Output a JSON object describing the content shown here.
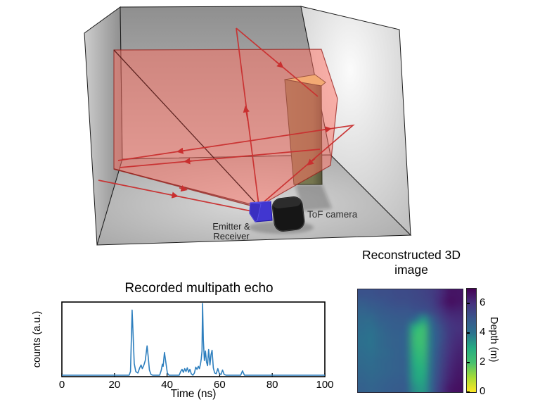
{
  "scene": {
    "emitter_label_line1": "Emitter &",
    "emitter_label_line2": "Receiver",
    "tof_label": "ToF camera",
    "colors": {
      "beam": "#ff6e5f",
      "beam_edge": "#a02620",
      "ray": "#c92f2f",
      "emitter_blue": "#4136d0",
      "camera_black": "#161616",
      "pillar_front": "#75754e",
      "pillar_top": "#e6e687",
      "wall_gray": "#b5b5b5"
    }
  },
  "chart_data": [
    {
      "type": "line",
      "title": "Recorded multipath echo",
      "xlabel": "Time (ns)",
      "ylabel": "counts (a.u.)",
      "xlim": [
        0,
        100
      ],
      "ylim": [
        0,
        1.08
      ],
      "x_ticks": [
        0,
        20,
        40,
        60,
        80,
        100
      ],
      "line_color": "#2e7fbe",
      "grid": "off",
      "points": [
        [
          0,
          0.02
        ],
        [
          25.6,
          0.02
        ],
        [
          26.1,
          0.07
        ],
        [
          26.7,
          0.91
        ],
        [
          27.1,
          0.55
        ],
        [
          27.5,
          0.18
        ],
        [
          28.1,
          0.07
        ],
        [
          28.9,
          0.05
        ],
        [
          29.6,
          0.12
        ],
        [
          30.1,
          0.16
        ],
        [
          30.6,
          0.11
        ],
        [
          31.2,
          0.16
        ],
        [
          31.7,
          0.22
        ],
        [
          32.4,
          0.42
        ],
        [
          32.8,
          0.28
        ],
        [
          33.3,
          0.09
        ],
        [
          33.9,
          0.03
        ],
        [
          34.5,
          0.02
        ],
        [
          37.2,
          0.02
        ],
        [
          37.8,
          0.09
        ],
        [
          38.2,
          0.17
        ],
        [
          38.5,
          0.14
        ],
        [
          39.0,
          0.33
        ],
        [
          39.6,
          0.18
        ],
        [
          40.1,
          0.05
        ],
        [
          40.7,
          0.02
        ],
        [
          44.6,
          0.02
        ],
        [
          45.2,
          0.07
        ],
        [
          45.7,
          0.1
        ],
        [
          46.2,
          0.06
        ],
        [
          46.7,
          0.11
        ],
        [
          47.2,
          0.07
        ],
        [
          47.7,
          0.12
        ],
        [
          48.2,
          0.06
        ],
        [
          48.7,
          0.1
        ],
        [
          49.2,
          0.04
        ],
        [
          49.8,
          0.02
        ],
        [
          50.4,
          0.05
        ],
        [
          50.9,
          0.13
        ],
        [
          51.4,
          0.1
        ],
        [
          51.9,
          0.14
        ],
        [
          52.3,
          0.11
        ],
        [
          52.7,
          0.17
        ],
        [
          53.0,
          0.24
        ],
        [
          53.3,
          0.35
        ],
        [
          53.5,
          1.0
        ],
        [
          53.8,
          0.5
        ],
        [
          54.2,
          0.22
        ],
        [
          54.6,
          0.35
        ],
        [
          55.0,
          0.2
        ],
        [
          55.4,
          0.15
        ],
        [
          55.8,
          0.37
        ],
        [
          56.3,
          0.16
        ],
        [
          56.7,
          0.3
        ],
        [
          57.1,
          0.36
        ],
        [
          57.6,
          0.12
        ],
        [
          58.1,
          0.05
        ],
        [
          58.7,
          0.04
        ],
        [
          59.3,
          0.11
        ],
        [
          59.9,
          0.04
        ],
        [
          60.5,
          0.03
        ],
        [
          61.1,
          0.09
        ],
        [
          61.7,
          0.03
        ],
        [
          62.4,
          0.02
        ],
        [
          68.0,
          0.02
        ],
        [
          68.7,
          0.08
        ],
        [
          69.4,
          0.02
        ],
        [
          100,
          0.02
        ]
      ]
    },
    {
      "type": "heatmap",
      "title": "Reconstructed 3D image",
      "colorbar_label": "Depth (m)",
      "colorbar_ticks": [
        0,
        2,
        4,
        6
      ],
      "depth_range": [
        0,
        7
      ],
      "colormap": "viridis_reversed",
      "colormap_stops": [
        [
          0,
          "#fde725"
        ],
        [
          0.143,
          "#a5db36"
        ],
        [
          0.286,
          "#46c06f"
        ],
        [
          0.429,
          "#25ab82"
        ],
        [
          0.571,
          "#2c728e"
        ],
        [
          0.714,
          "#39568c"
        ],
        [
          0.857,
          "#46327e"
        ],
        [
          1,
          "#440154"
        ]
      ],
      "grid": [
        [
          5.1,
          5.1,
          5.2,
          5.2,
          5.3,
          5.3,
          5.4,
          5.5,
          5.7,
          6.1,
          6.6,
          6.6
        ],
        [
          4.8,
          4.9,
          5.0,
          5.1,
          5.2,
          5.2,
          5.3,
          5.4,
          5.6,
          6.2,
          6.7,
          6.6
        ],
        [
          4.5,
          4.6,
          4.8,
          4.9,
          5.0,
          5.0,
          5.1,
          5.1,
          5.4,
          5.9,
          6.3,
          6.3
        ],
        [
          4.3,
          4.3,
          4.6,
          4.7,
          4.8,
          4.8,
          4.2,
          3.4,
          4.6,
          5.5,
          6.0,
          6.1
        ],
        [
          4.2,
          4.1,
          4.4,
          4.6,
          4.7,
          4.5,
          2.8,
          2.3,
          4.2,
          5.2,
          5.8,
          6.0
        ],
        [
          4.1,
          4.0,
          4.3,
          4.5,
          4.6,
          4.4,
          2.4,
          2.2,
          4.1,
          5.1,
          5.8,
          6.1
        ],
        [
          4.1,
          4.0,
          4.3,
          4.5,
          4.6,
          4.4,
          2.5,
          2.3,
          4.1,
          5.2,
          5.9,
          6.2
        ],
        [
          4.2,
          4.1,
          4.3,
          4.4,
          4.6,
          4.4,
          2.7,
          2.5,
          4.2,
          5.3,
          6.0,
          6.3
        ],
        [
          4.3,
          4.2,
          4.4,
          4.5,
          4.6,
          4.5,
          2.9,
          2.7,
          4.3,
          5.4,
          6.1,
          6.4
        ],
        [
          4.4,
          4.3,
          4.4,
          4.5,
          4.6,
          4.5,
          3.1,
          2.9,
          4.4,
          5.5,
          6.2,
          6.5
        ],
        [
          4.5,
          4.4,
          4.5,
          4.6,
          4.7,
          4.6,
          3.2,
          3.1,
          4.5,
          5.6,
          6.3,
          6.6
        ],
        [
          4.6,
          4.5,
          4.6,
          4.7,
          4.8,
          4.7,
          3.5,
          3.3,
          4.6,
          5.8,
          6.5,
          6.7
        ]
      ]
    }
  ]
}
